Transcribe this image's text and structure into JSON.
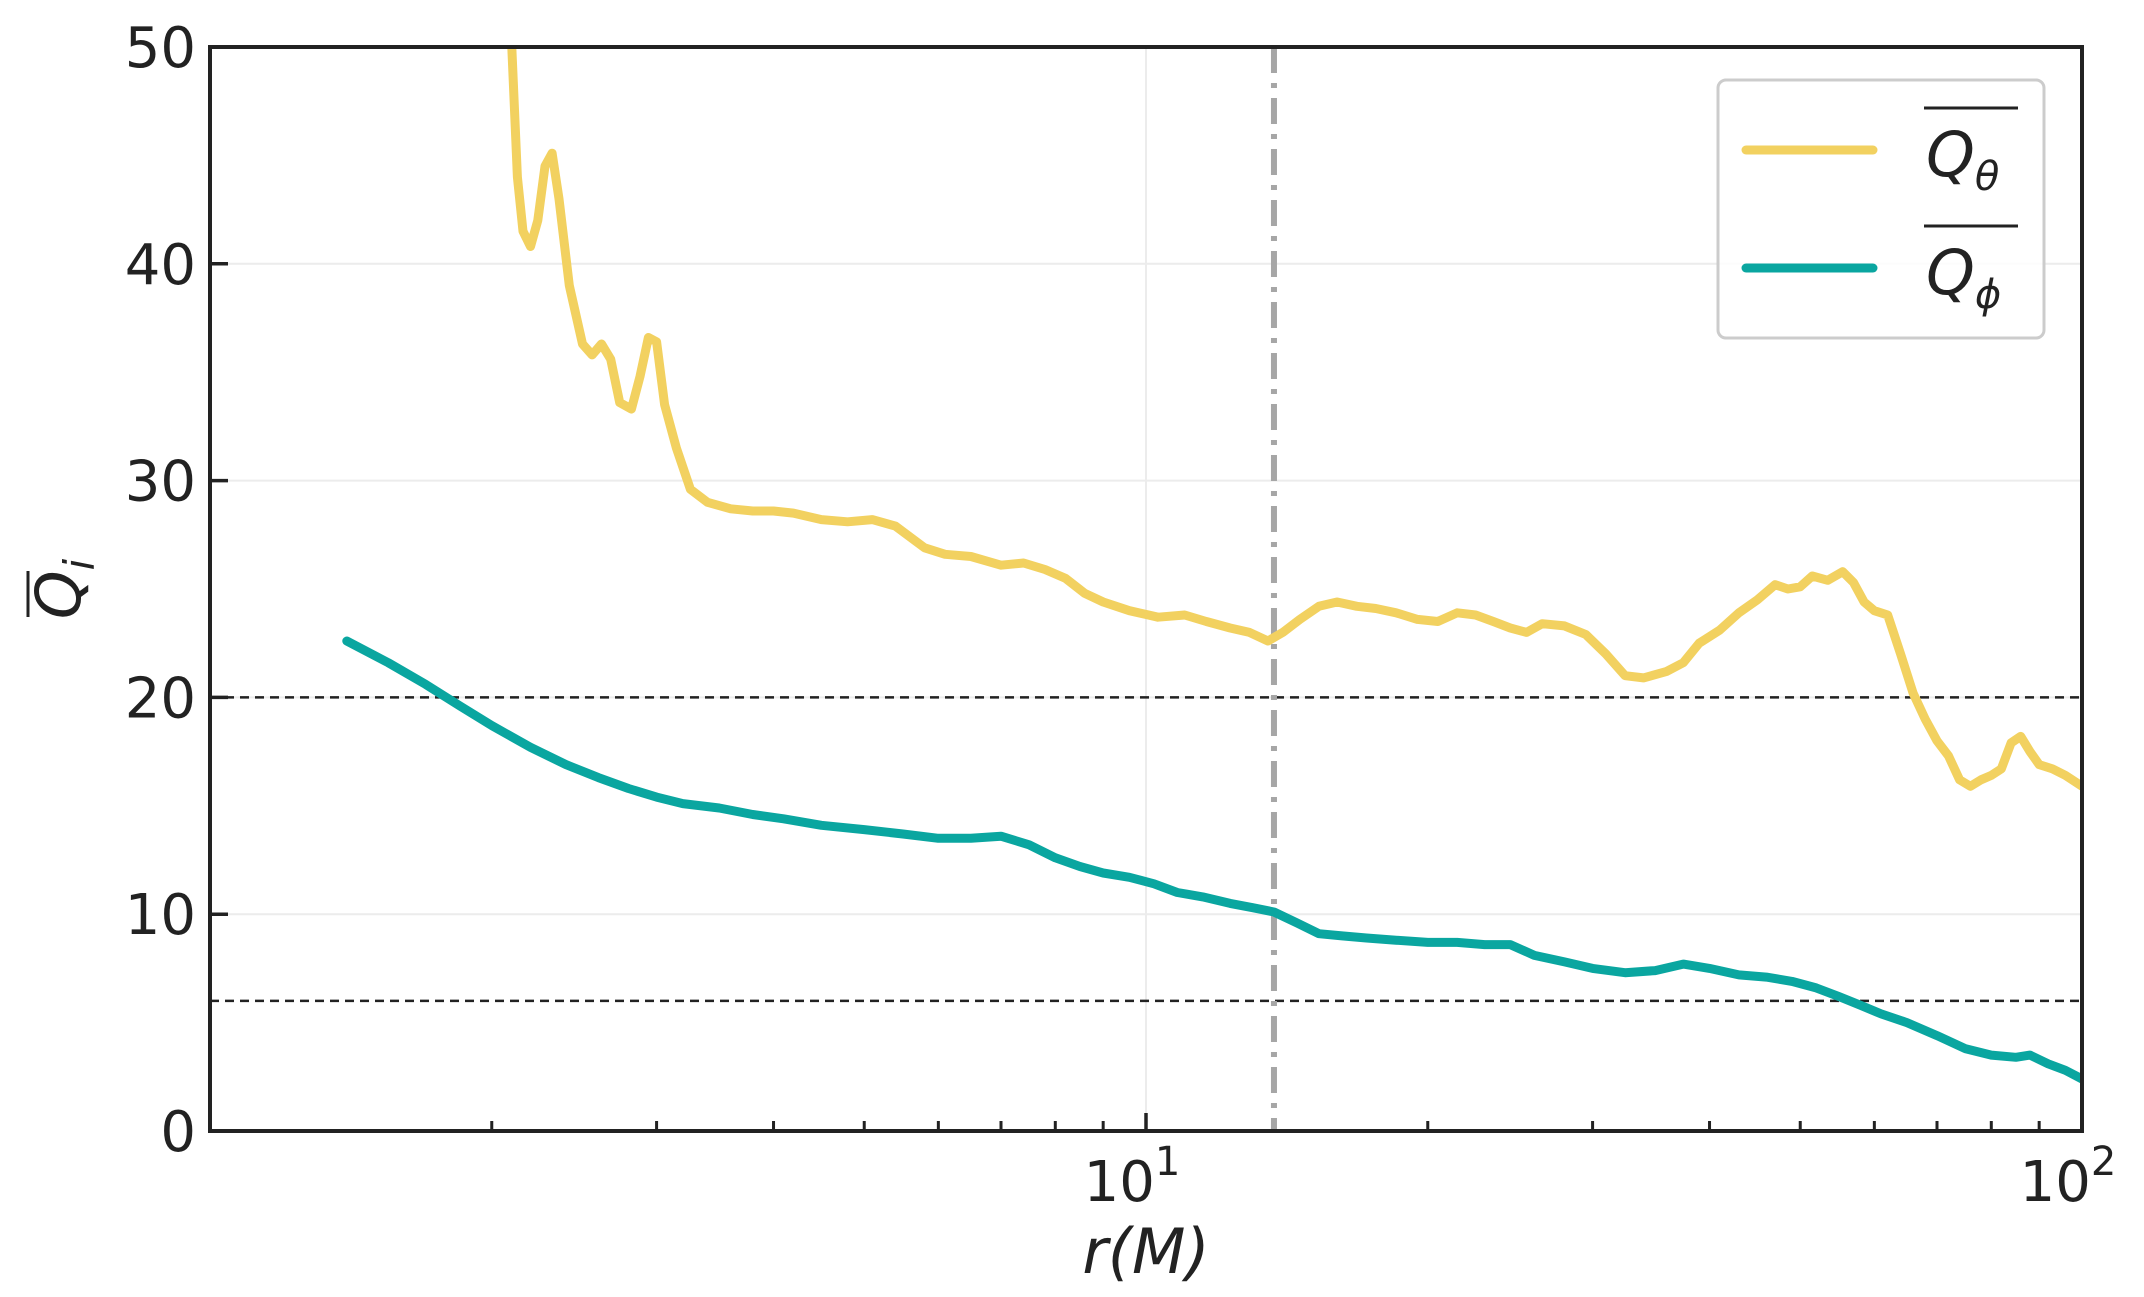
{
  "chart_data": {
    "type": "line",
    "xlabel": "r(M)",
    "ylabel": "Q_i",
    "x_scale": "log",
    "xlim": [
      1.0,
      100
    ],
    "ylim": [
      0,
      50
    ],
    "grid": true,
    "legend_position": "top-right",
    "x_tick_labels": [
      {
        "value": 10,
        "base": "10",
        "exp": "1"
      },
      {
        "value": 100,
        "base": "10",
        "exp": "2"
      }
    ],
    "y_ticks": [
      0,
      10,
      20,
      30,
      40,
      50
    ],
    "y_tick_labels": [
      "0",
      "10",
      "20",
      "30",
      "40",
      "50"
    ],
    "reference_lines": {
      "horizontal": [
        20,
        6
      ],
      "vertical": [
        13.7
      ]
    },
    "series": [
      {
        "name": "Q_θ",
        "legend_base": "Q",
        "legend_sub": "θ",
        "color": "#F2D160",
        "points": [
          [
            2.1,
            50.2
          ],
          [
            2.13,
            44
          ],
          [
            2.16,
            41.5
          ],
          [
            2.2,
            40.8
          ],
          [
            2.24,
            42
          ],
          [
            2.28,
            44.5
          ],
          [
            2.32,
            45.1
          ],
          [
            2.36,
            43
          ],
          [
            2.42,
            39
          ],
          [
            2.5,
            36.3
          ],
          [
            2.56,
            35.8
          ],
          [
            2.62,
            36.3
          ],
          [
            2.68,
            35.6
          ],
          [
            2.74,
            33.6
          ],
          [
            2.82,
            33.3
          ],
          [
            2.88,
            34.8
          ],
          [
            2.94,
            36.6
          ],
          [
            3.0,
            36.4
          ],
          [
            3.06,
            33.5
          ],
          [
            3.15,
            31.5
          ],
          [
            3.26,
            29.6
          ],
          [
            3.4,
            29.0
          ],
          [
            3.6,
            28.7
          ],
          [
            3.8,
            28.6
          ],
          [
            4.0,
            28.6
          ],
          [
            4.2,
            28.5
          ],
          [
            4.5,
            28.2
          ],
          [
            4.8,
            28.1
          ],
          [
            5.1,
            28.2
          ],
          [
            5.4,
            27.9
          ],
          [
            5.8,
            26.9
          ],
          [
            6.1,
            26.6
          ],
          [
            6.5,
            26.5
          ],
          [
            7.0,
            26.1
          ],
          [
            7.4,
            26.2
          ],
          [
            7.8,
            25.9
          ],
          [
            8.2,
            25.5
          ],
          [
            8.6,
            24.8
          ],
          [
            9.0,
            24.4
          ],
          [
            9.6,
            24.0
          ],
          [
            10.3,
            23.7
          ],
          [
            11.0,
            23.8
          ],
          [
            11.6,
            23.5
          ],
          [
            12.3,
            23.2
          ],
          [
            12.9,
            23.0
          ],
          [
            13.5,
            22.6
          ],
          [
            14.0,
            23.0
          ],
          [
            14.6,
            23.6
          ],
          [
            15.3,
            24.2
          ],
          [
            16.0,
            24.4
          ],
          [
            16.8,
            24.2
          ],
          [
            17.6,
            24.1
          ],
          [
            18.5,
            23.9
          ],
          [
            19.5,
            23.6
          ],
          [
            20.5,
            23.5
          ],
          [
            21.5,
            23.9
          ],
          [
            22.5,
            23.8
          ],
          [
            23.5,
            23.5
          ],
          [
            24.5,
            23.2
          ],
          [
            25.5,
            23.0
          ],
          [
            26.5,
            23.4
          ],
          [
            28.0,
            23.3
          ],
          [
            29.5,
            22.9
          ],
          [
            31.0,
            22.0
          ],
          [
            32.5,
            21.0
          ],
          [
            34.0,
            20.9
          ],
          [
            36.0,
            21.2
          ],
          [
            37.5,
            21.6
          ],
          [
            39.0,
            22.5
          ],
          [
            41.0,
            23.1
          ],
          [
            43.0,
            23.9
          ],
          [
            45.0,
            24.5
          ],
          [
            47.0,
            25.2
          ],
          [
            48.5,
            25.0
          ],
          [
            50.0,
            25.1
          ],
          [
            51.5,
            25.6
          ],
          [
            53.5,
            25.4
          ],
          [
            55.5,
            25.8
          ],
          [
            57.0,
            25.3
          ],
          [
            58.5,
            24.4
          ],
          [
            60.0,
            24.0
          ],
          [
            62.0,
            23.8
          ],
          [
            64.0,
            22.0
          ],
          [
            66.0,
            20.2
          ],
          [
            68.0,
            19.0
          ],
          [
            70.0,
            18.0
          ],
          [
            72.0,
            17.3
          ],
          [
            74.0,
            16.2
          ],
          [
            76.0,
            15.9
          ],
          [
            78.0,
            16.2
          ],
          [
            80.0,
            16.4
          ],
          [
            82.0,
            16.7
          ],
          [
            84.0,
            17.9
          ],
          [
            86.0,
            18.2
          ],
          [
            88.0,
            17.5
          ],
          [
            90.0,
            16.9
          ],
          [
            93.0,
            16.7
          ],
          [
            96.0,
            16.4
          ],
          [
            100.0,
            15.9
          ]
        ]
      },
      {
        "name": "Q_ϕ",
        "legend_base": "Q",
        "legend_sub": "ϕ",
        "color": "#0AA6A0",
        "points": [
          [
            1.4,
            22.6
          ],
          [
            1.55,
            21.6
          ],
          [
            1.7,
            20.6
          ],
          [
            1.85,
            19.6
          ],
          [
            2.0,
            18.7
          ],
          [
            2.2,
            17.7
          ],
          [
            2.4,
            16.9
          ],
          [
            2.6,
            16.3
          ],
          [
            2.8,
            15.8
          ],
          [
            3.0,
            15.4
          ],
          [
            3.2,
            15.1
          ],
          [
            3.5,
            14.9
          ],
          [
            3.8,
            14.6
          ],
          [
            4.1,
            14.4
          ],
          [
            4.5,
            14.1
          ],
          [
            5.0,
            13.9
          ],
          [
            5.5,
            13.7
          ],
          [
            6.0,
            13.5
          ],
          [
            6.5,
            13.5
          ],
          [
            7.0,
            13.6
          ],
          [
            7.5,
            13.2
          ],
          [
            8.0,
            12.6
          ],
          [
            8.5,
            12.2
          ],
          [
            9.0,
            11.9
          ],
          [
            9.6,
            11.7
          ],
          [
            10.2,
            11.4
          ],
          [
            10.8,
            11.0
          ],
          [
            11.5,
            10.8
          ],
          [
            12.3,
            10.5
          ],
          [
            13.0,
            10.3
          ],
          [
            13.7,
            10.1
          ],
          [
            14.5,
            9.6
          ],
          [
            15.3,
            9.1
          ],
          [
            16.2,
            9.0
          ],
          [
            17.2,
            8.9
          ],
          [
            18.5,
            8.8
          ],
          [
            20.0,
            8.7
          ],
          [
            21.5,
            8.7
          ],
          [
            23.0,
            8.6
          ],
          [
            24.5,
            8.6
          ],
          [
            26.0,
            8.1
          ],
          [
            28.0,
            7.8
          ],
          [
            30.0,
            7.5
          ],
          [
            32.5,
            7.3
          ],
          [
            35.0,
            7.4
          ],
          [
            37.5,
            7.7
          ],
          [
            40.0,
            7.5
          ],
          [
            43.0,
            7.2
          ],
          [
            46.0,
            7.1
          ],
          [
            49.0,
            6.9
          ],
          [
            52.0,
            6.6
          ],
          [
            55.0,
            6.2
          ],
          [
            58.0,
            5.8
          ],
          [
            61.0,
            5.4
          ],
          [
            65.0,
            5.0
          ],
          [
            70.0,
            4.4
          ],
          [
            75.0,
            3.8
          ],
          [
            80.0,
            3.5
          ],
          [
            85.0,
            3.4
          ],
          [
            88.0,
            3.5
          ],
          [
            92.0,
            3.1
          ],
          [
            96.0,
            2.8
          ],
          [
            100.0,
            2.4
          ]
        ]
      }
    ]
  }
}
